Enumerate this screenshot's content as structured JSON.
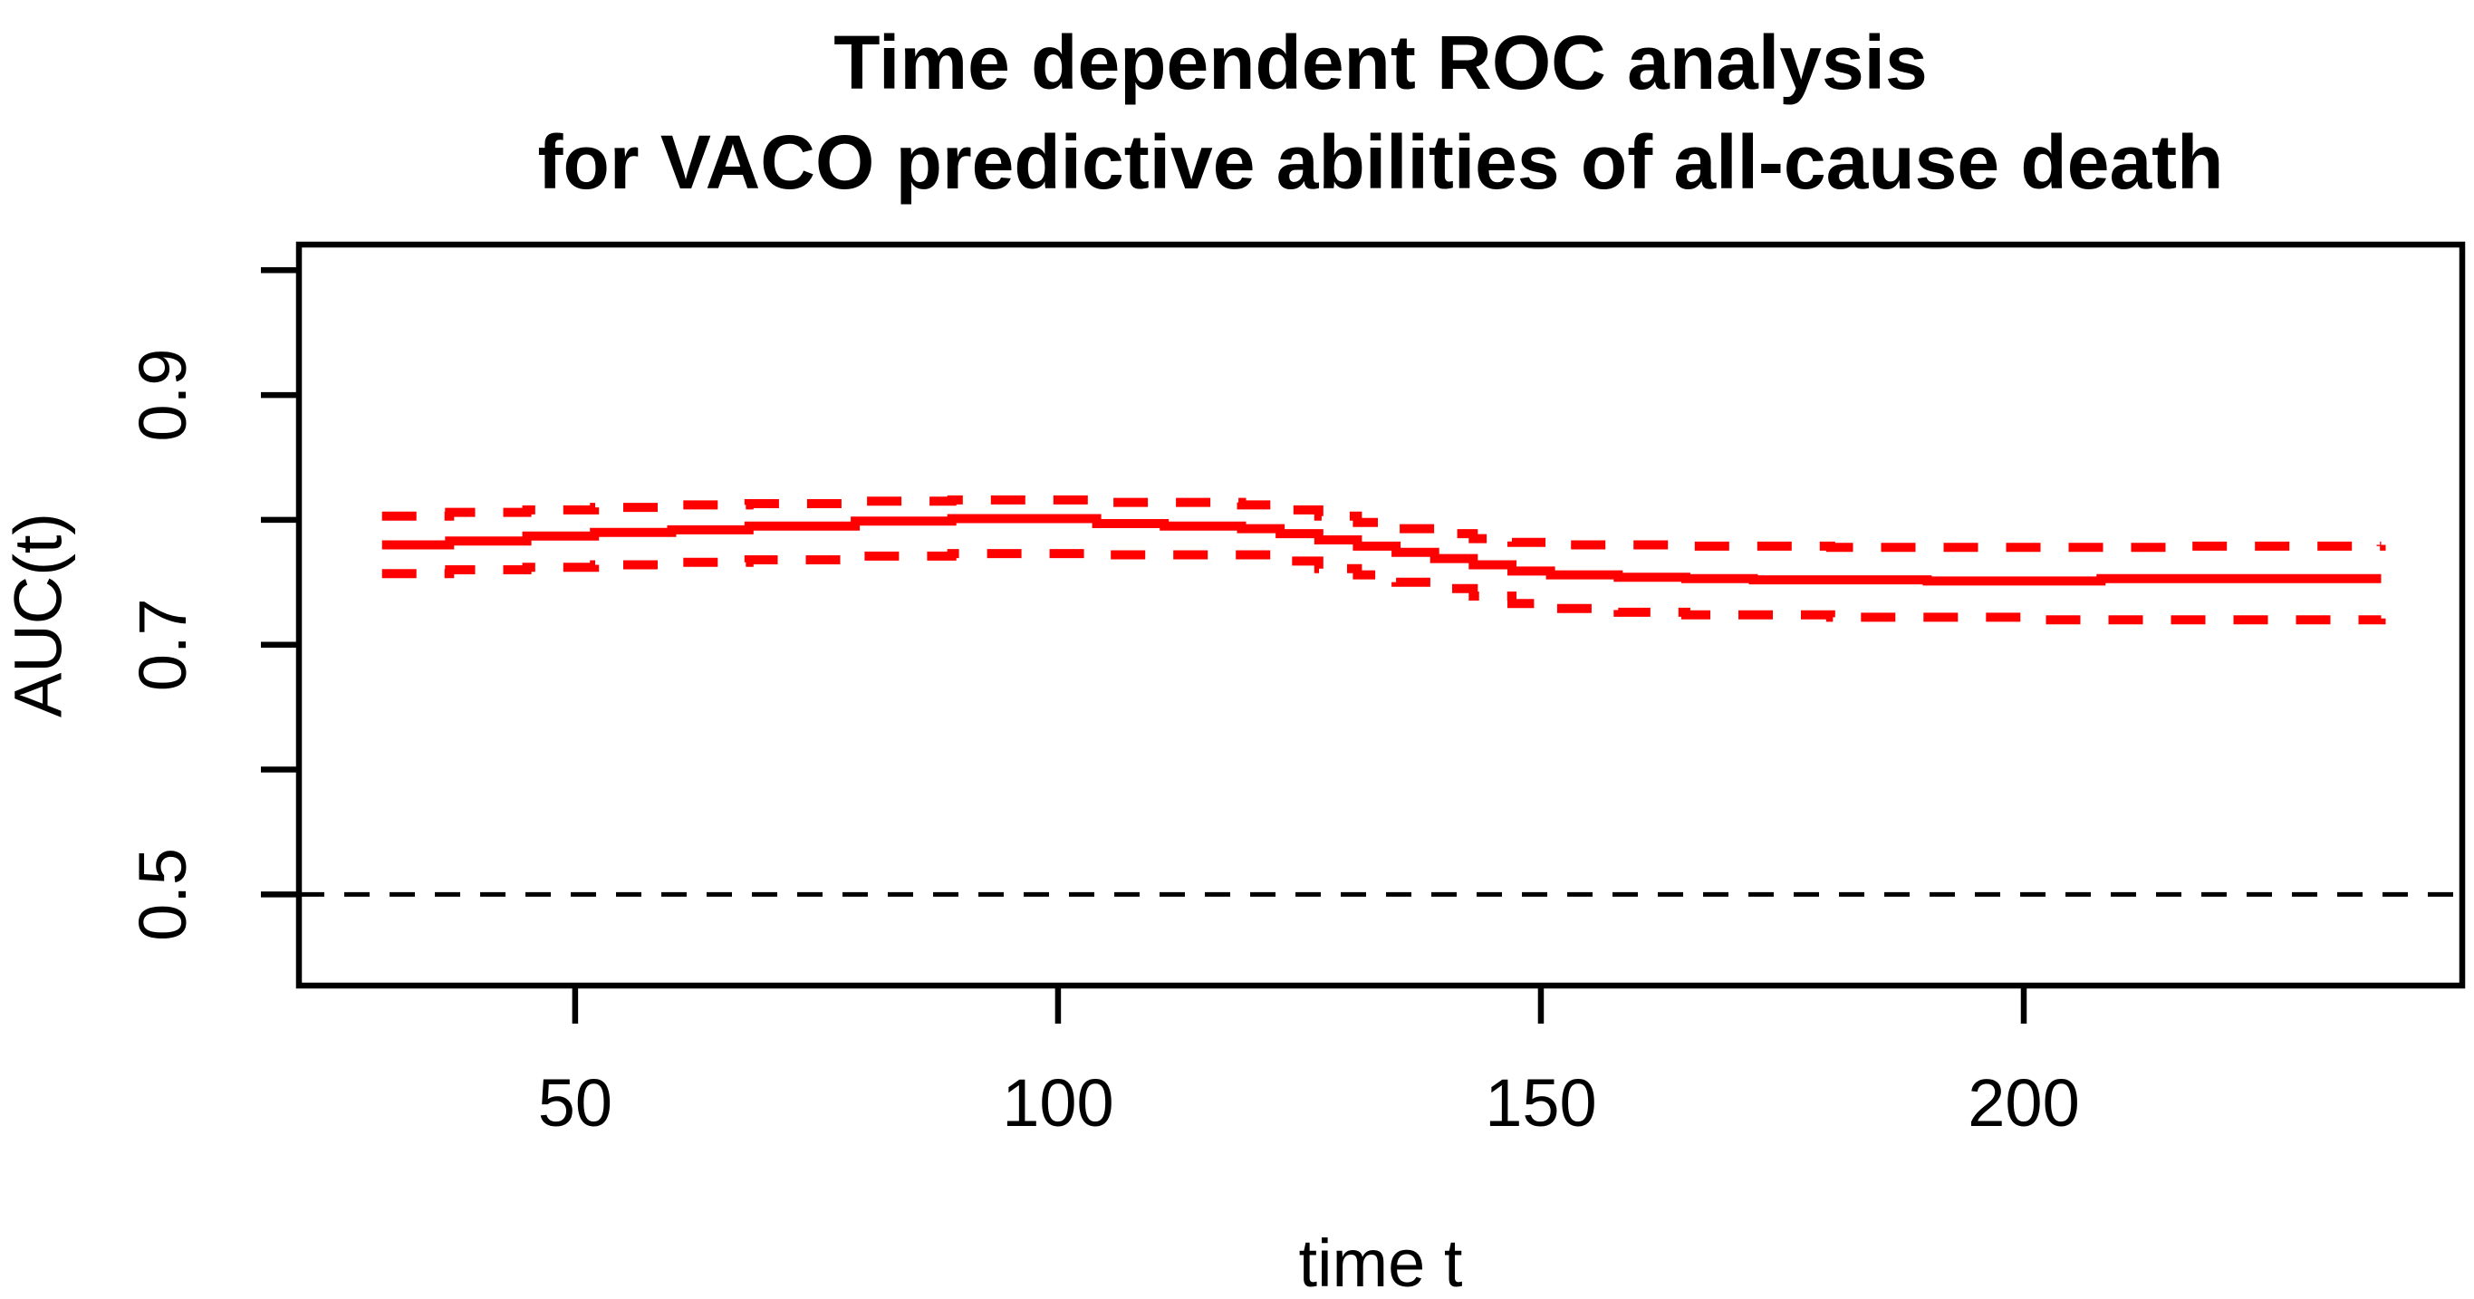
{
  "figure": {
    "title_line1": "Time dependent ROC analysis",
    "title_line2": "for VACO predictive abilities of all-cause death",
    "background_color": "#ffffff"
  },
  "chart_data": {
    "type": "line",
    "title": "Time dependent ROC analysis for VACO predictive abilities of all-cause death",
    "xlabel": "time t",
    "ylabel": "AUC(t)",
    "xlim": [
      21.4,
      245.4
    ],
    "ylim": [
      0.427,
      1.0205
    ],
    "x_ticks": [
      50,
      100,
      150,
      200
    ],
    "x_tick_labels": [
      "50",
      "100",
      "150",
      "200"
    ],
    "y_ticks": [
      0.5,
      0.6,
      0.7,
      0.8,
      0.9,
      1.0
    ],
    "y_tick_labels": [
      "0.5",
      "",
      "0.7",
      "",
      "0.9",
      ""
    ],
    "grid": false,
    "legend": null,
    "interpolation": "step-after",
    "reference_line": {
      "y": 0.5,
      "style": "dashed",
      "color": "#000000"
    },
    "colors": {
      "series": "#ff0000",
      "axis": "#000000",
      "text": "#000000"
    },
    "series": [
      {
        "name": "auc-estimate",
        "style": "solid",
        "color": "#ff0000",
        "points": [
          [
            30,
            0.78
          ],
          [
            37,
            0.783
          ],
          [
            45,
            0.787
          ],
          [
            52,
            0.79
          ],
          [
            60,
            0.792
          ],
          [
            68,
            0.795
          ],
          [
            79,
            0.799
          ],
          [
            89,
            0.801
          ],
          [
            104,
            0.797
          ],
          [
            111,
            0.795
          ],
          [
            119,
            0.793
          ],
          [
            123,
            0.789
          ],
          [
            127,
            0.784
          ],
          [
            131,
            0.779
          ],
          [
            135,
            0.774
          ],
          [
            139,
            0.769
          ],
          [
            143,
            0.764
          ],
          [
            147,
            0.759
          ],
          [
            151,
            0.756
          ],
          [
            158,
            0.754
          ],
          [
            165,
            0.753
          ],
          [
            172,
            0.752
          ],
          [
            190,
            0.751
          ],
          [
            208,
            0.753
          ],
          [
            237,
            0.753
          ]
        ]
      },
      {
        "name": "confidence-band-upper",
        "style": "dashed",
        "color": "#ff0000",
        "points": [
          [
            30,
            0.803
          ],
          [
            37,
            0.806
          ],
          [
            45,
            0.808
          ],
          [
            52,
            0.81
          ],
          [
            60,
            0.812
          ],
          [
            68,
            0.813
          ],
          [
            79,
            0.815
          ],
          [
            89,
            0.816
          ],
          [
            104,
            0.814
          ],
          [
            119,
            0.812
          ],
          [
            123,
            0.808
          ],
          [
            127,
            0.803
          ],
          [
            131,
            0.798
          ],
          [
            135,
            0.793
          ],
          [
            139,
            0.789
          ],
          [
            143,
            0.785
          ],
          [
            147,
            0.782
          ],
          [
            151,
            0.78
          ],
          [
            165,
            0.779
          ],
          [
            180,
            0.778
          ],
          [
            200,
            0.778
          ],
          [
            215,
            0.779
          ],
          [
            237,
            0.78
          ]
        ]
      },
      {
        "name": "confidence-band-lower",
        "style": "dashed",
        "color": "#ff0000",
        "points": [
          [
            30,
            0.757
          ],
          [
            37,
            0.76
          ],
          [
            45,
            0.762
          ],
          [
            52,
            0.764
          ],
          [
            60,
            0.766
          ],
          [
            68,
            0.768
          ],
          [
            79,
            0.771
          ],
          [
            89,
            0.773
          ],
          [
            104,
            0.772
          ],
          [
            119,
            0.772
          ],
          [
            123,
            0.767
          ],
          [
            127,
            0.761
          ],
          [
            131,
            0.756
          ],
          [
            135,
            0.75
          ],
          [
            139,
            0.745
          ],
          [
            143,
            0.739
          ],
          [
            147,
            0.733
          ],
          [
            151,
            0.729
          ],
          [
            158,
            0.726
          ],
          [
            165,
            0.724
          ],
          [
            180,
            0.722
          ],
          [
            200,
            0.72
          ],
          [
            215,
            0.72
          ],
          [
            237,
            0.721
          ]
        ]
      }
    ]
  }
}
